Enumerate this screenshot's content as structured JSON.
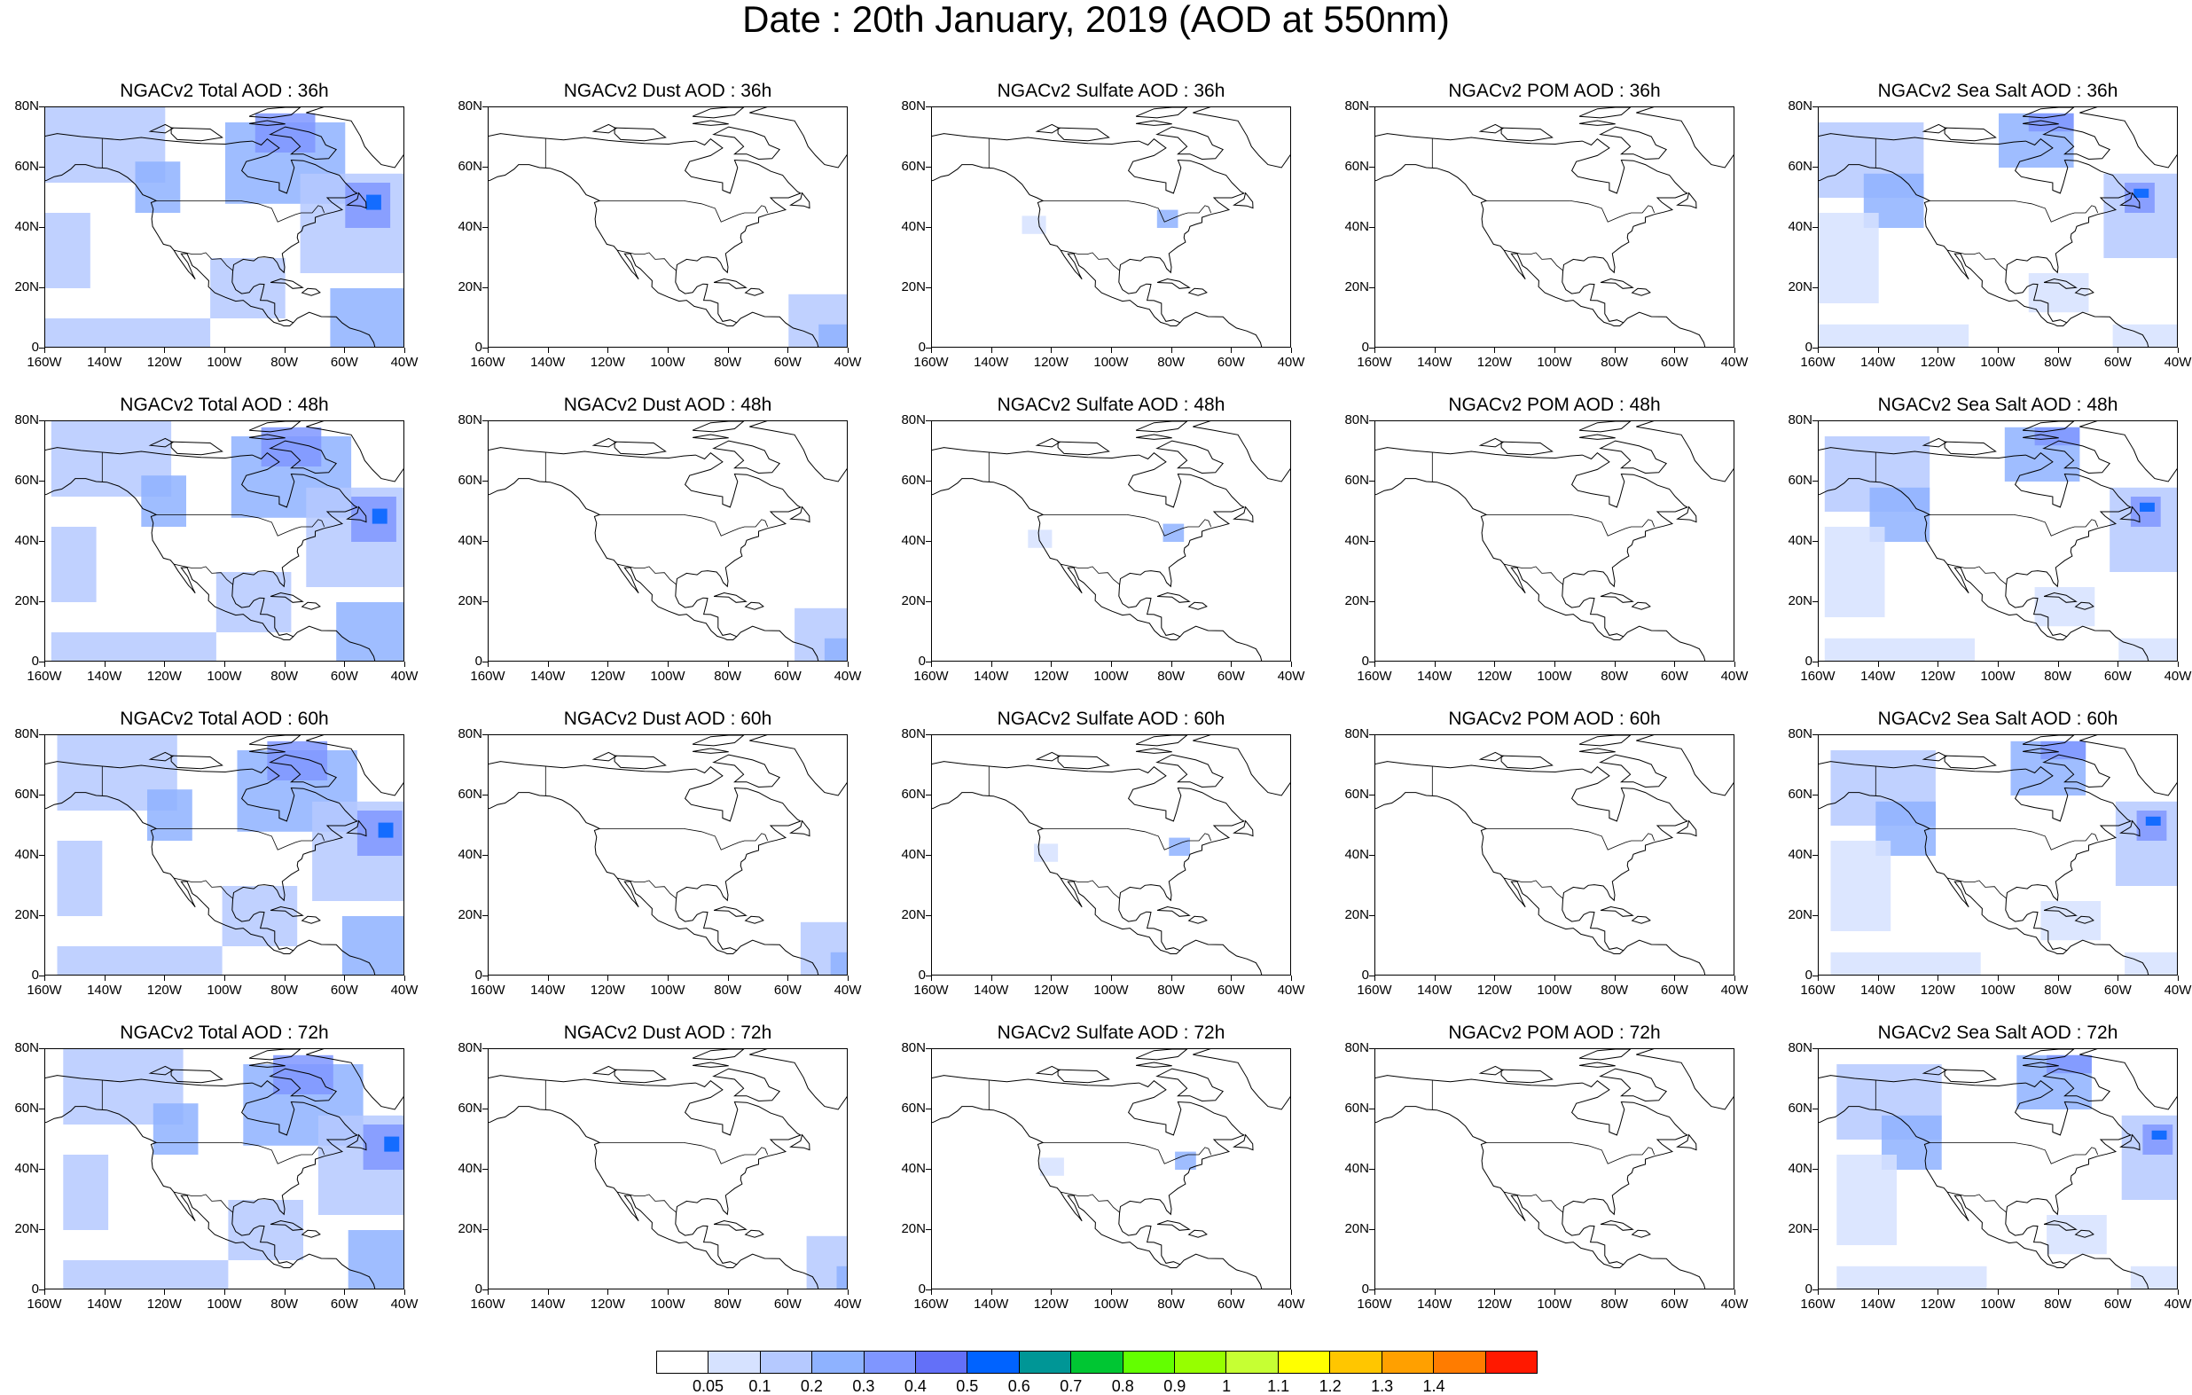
{
  "title": "Date : 20th January, 2019 (AOD at 550nm)",
  "axes": {
    "y_labels": [
      "80N",
      "60N",
      "40N",
      "20N",
      "0"
    ],
    "x_labels": [
      "160W",
      "140W",
      "120W",
      "100W",
      "80W",
      "60W",
      "40W"
    ],
    "lon_range": [
      -160,
      -40
    ],
    "lat_range": [
      0,
      80
    ]
  },
  "panels": [
    {
      "title": "NGACv2 Total AOD : 36h",
      "field": "total",
      "hour": 36
    },
    {
      "title": "NGACv2 Dust AOD : 36h",
      "field": "dust",
      "hour": 36
    },
    {
      "title": "NGACv2 Sulfate AOD : 36h",
      "field": "sulfate",
      "hour": 36
    },
    {
      "title": "NGACv2 POM AOD : 36h",
      "field": "pom",
      "hour": 36
    },
    {
      "title": "NGACv2 Sea Salt AOD : 36h",
      "field": "seasalt",
      "hour": 36
    },
    {
      "title": "NGACv2 Total AOD : 48h",
      "field": "total",
      "hour": 48
    },
    {
      "title": "NGACv2 Dust AOD : 48h",
      "field": "dust",
      "hour": 48
    },
    {
      "title": "NGACv2 Sulfate AOD : 48h",
      "field": "sulfate",
      "hour": 48
    },
    {
      "title": "NGACv2 POM AOD : 48h",
      "field": "pom",
      "hour": 48
    },
    {
      "title": "NGACv2 Sea Salt AOD : 48h",
      "field": "seasalt",
      "hour": 48
    },
    {
      "title": "NGACv2 Total AOD : 60h",
      "field": "total",
      "hour": 60
    },
    {
      "title": "NGACv2 Dust AOD : 60h",
      "field": "dust",
      "hour": 60
    },
    {
      "title": "NGACv2 Sulfate AOD : 60h",
      "field": "sulfate",
      "hour": 60
    },
    {
      "title": "NGACv2 POM AOD : 60h",
      "field": "pom",
      "hour": 60
    },
    {
      "title": "NGACv2 Sea Salt AOD : 60h",
      "field": "seasalt",
      "hour": 60
    },
    {
      "title": "NGACv2 Total AOD : 72h",
      "field": "total",
      "hour": 72
    },
    {
      "title": "NGACv2 Dust AOD : 72h",
      "field": "dust",
      "hour": 72
    },
    {
      "title": "NGACv2 Sulfate AOD : 72h",
      "field": "sulfate",
      "hour": 72
    },
    {
      "title": "NGACv2 POM AOD : 72h",
      "field": "pom",
      "hour": 72
    },
    {
      "title": "NGACv2 Sea Salt  AOD : 72h",
      "field": "seasalt",
      "hour": 72
    }
  ],
  "colorbar": {
    "labels": [
      "0.05",
      "0.1",
      "0.2",
      "0.3",
      "0.4",
      "0.5",
      "0.6",
      "0.7",
      "0.8",
      "0.9",
      "1",
      "1.1",
      "1.2",
      "1.3",
      "1.4"
    ],
    "colors": [
      "#ffffff",
      "#d6e2ff",
      "#b5c9ff",
      "#8eb2ff",
      "#7f96ff",
      "#6370f8",
      "#0063ff",
      "#009696",
      "#00c633",
      "#63ff00",
      "#96ff00",
      "#c6ff33",
      "#ffff00",
      "#ffc600",
      "#ffa000",
      "#ff7c00",
      "#ff1900"
    ]
  },
  "chart_data": {
    "type": "heatmap",
    "title": "Date : 20th January, 2019 (AOD at 550nm)",
    "x_range": [
      -160,
      -40
    ],
    "y_range": [
      0,
      80
    ],
    "levels": [
      0.05,
      0.1,
      0.2,
      0.3,
      0.4,
      0.5,
      0.6,
      0.7,
      0.8,
      0.9,
      1,
      1.1,
      1.2,
      1.3,
      1.4
    ],
    "fields": [
      "Total",
      "Dust",
      "Sulfate",
      "POM",
      "Sea Salt"
    ],
    "forecast_hours": [
      36,
      48,
      60,
      72
    ]
  }
}
